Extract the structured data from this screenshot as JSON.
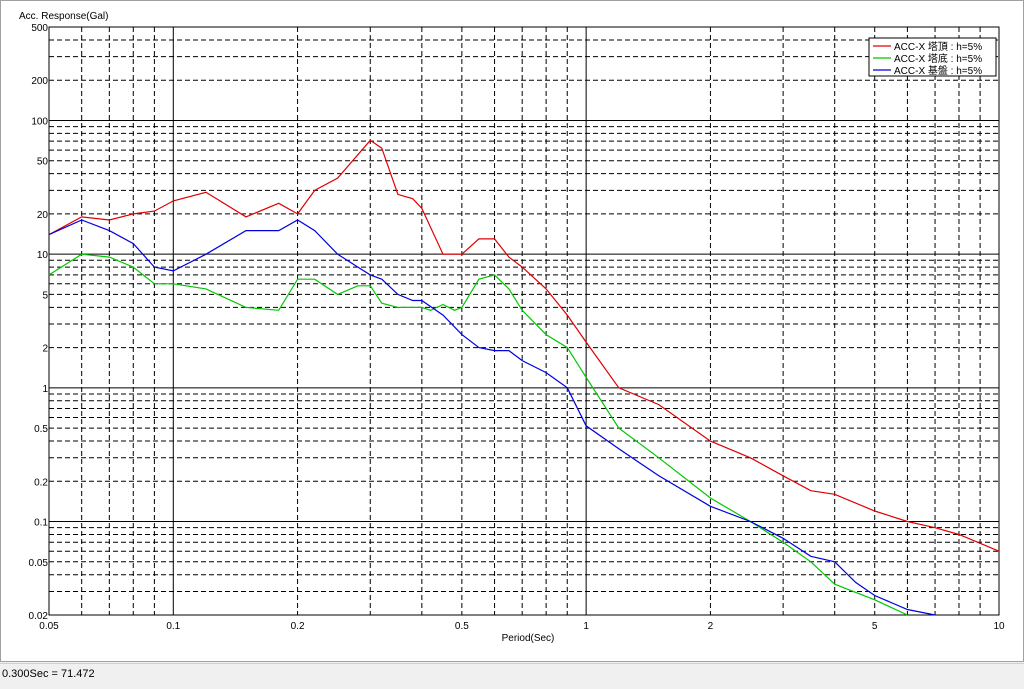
{
  "chart_data": {
    "type": "line",
    "ylabel": "Acc. Response(Gal)",
    "xlabel": "Period(Sec)",
    "xscale": "log",
    "yscale": "log",
    "xlim": [
      0.05,
      10
    ],
    "ylim": [
      0.02,
      500
    ],
    "grid": true,
    "legend_position": "top-right",
    "x_ticks": [
      {
        "v": 0.05,
        "label": "0.05"
      },
      {
        "v": 0.1,
        "label": "0.1"
      },
      {
        "v": 0.2,
        "label": "0.2"
      },
      {
        "v": 0.5,
        "label": "0.5"
      },
      {
        "v": 1,
        "label": "1"
      },
      {
        "v": 2,
        "label": "2"
      },
      {
        "v": 5,
        "label": "5"
      },
      {
        "v": 10,
        "label": "10"
      }
    ],
    "y_ticks": [
      {
        "v": 500,
        "label": "500"
      },
      {
        "v": 200,
        "label": "200"
      },
      {
        "v": 100,
        "label": "100"
      },
      {
        "v": 50,
        "label": "50"
      },
      {
        "v": 20,
        "label": "20"
      },
      {
        "v": 10,
        "label": "10"
      },
      {
        "v": 5,
        "label": "5"
      },
      {
        "v": 2,
        "label": "2"
      },
      {
        "v": 1,
        "label": "1"
      },
      {
        "v": 0.5,
        "label": "0.5"
      },
      {
        "v": 0.2,
        "label": "0.2"
      },
      {
        "v": 0.1,
        "label": "0.1"
      },
      {
        "v": 0.05,
        "label": "0.05"
      },
      {
        "v": 0.02,
        "label": "0.02"
      }
    ],
    "series": [
      {
        "name": "ACC-X 塔頂 : h=5%",
        "color": "#e00000",
        "x": [
          0.05,
          0.06,
          0.07,
          0.08,
          0.09,
          0.1,
          0.12,
          0.15,
          0.18,
          0.2,
          0.22,
          0.25,
          0.3,
          0.32,
          0.35,
          0.38,
          0.4,
          0.45,
          0.5,
          0.55,
          0.6,
          0.65,
          0.7,
          0.8,
          0.9,
          1.0,
          1.2,
          1.5,
          2.0,
          2.5,
          3.0,
          3.5,
          4.0,
          5.0,
          6.0,
          7.0,
          8.0,
          10.0
        ],
        "y": [
          14,
          19,
          18,
          20,
          21,
          25,
          29,
          19,
          24,
          20,
          30,
          37,
          71,
          62,
          28,
          26,
          22,
          10,
          10,
          13,
          13,
          9.5,
          8,
          5.5,
          3.5,
          2.2,
          1.0,
          0.75,
          0.4,
          0.3,
          0.22,
          0.17,
          0.16,
          0.12,
          0.1,
          0.09,
          0.08,
          0.06
        ]
      },
      {
        "name": "ACC-X 塔底 : h=5%",
        "color": "#00c800",
        "x": [
          0.05,
          0.06,
          0.07,
          0.08,
          0.09,
          0.1,
          0.12,
          0.15,
          0.18,
          0.2,
          0.22,
          0.25,
          0.28,
          0.3,
          0.32,
          0.35,
          0.4,
          0.42,
          0.45,
          0.48,
          0.5,
          0.55,
          0.6,
          0.65,
          0.7,
          0.8,
          0.9,
          1.0,
          1.2,
          1.5,
          2.0,
          2.5,
          3.0,
          3.5,
          4.0,
          5.0,
          6.0
        ],
        "y": [
          7,
          10,
          9.5,
          8,
          6,
          6,
          5.5,
          4,
          3.8,
          6.5,
          6.5,
          5,
          5.8,
          5.8,
          4.3,
          4,
          4,
          3.8,
          4.2,
          3.8,
          4,
          6.5,
          7,
          5.5,
          3.8,
          2.5,
          2,
          1.2,
          0.5,
          0.3,
          0.15,
          0.1,
          0.07,
          0.05,
          0.034,
          0.026,
          0.02
        ]
      },
      {
        "name": "ACC-X 基盤 : h=5%",
        "color": "#0000e0",
        "x": [
          0.05,
          0.06,
          0.07,
          0.08,
          0.09,
          0.1,
          0.12,
          0.15,
          0.18,
          0.2,
          0.22,
          0.25,
          0.28,
          0.3,
          0.32,
          0.35,
          0.38,
          0.4,
          0.45,
          0.5,
          0.55,
          0.6,
          0.65,
          0.7,
          0.8,
          0.9,
          1.0,
          1.2,
          1.5,
          2.0,
          2.5,
          3.0,
          3.5,
          4.0,
          4.5,
          5.0,
          6.0,
          7.0
        ],
        "y": [
          14,
          18,
          15,
          12,
          8,
          7.5,
          10,
          15,
          15,
          18,
          15,
          10,
          8,
          7,
          6.5,
          5,
          4.5,
          4.5,
          3.5,
          2.5,
          2,
          1.9,
          1.9,
          1.6,
          1.3,
          1.0,
          0.52,
          0.35,
          0.22,
          0.13,
          0.1,
          0.075,
          0.055,
          0.05,
          0.035,
          0.028,
          0.022,
          0.02
        ]
      }
    ]
  },
  "status": {
    "text": "0.300Sec = 71.472"
  }
}
